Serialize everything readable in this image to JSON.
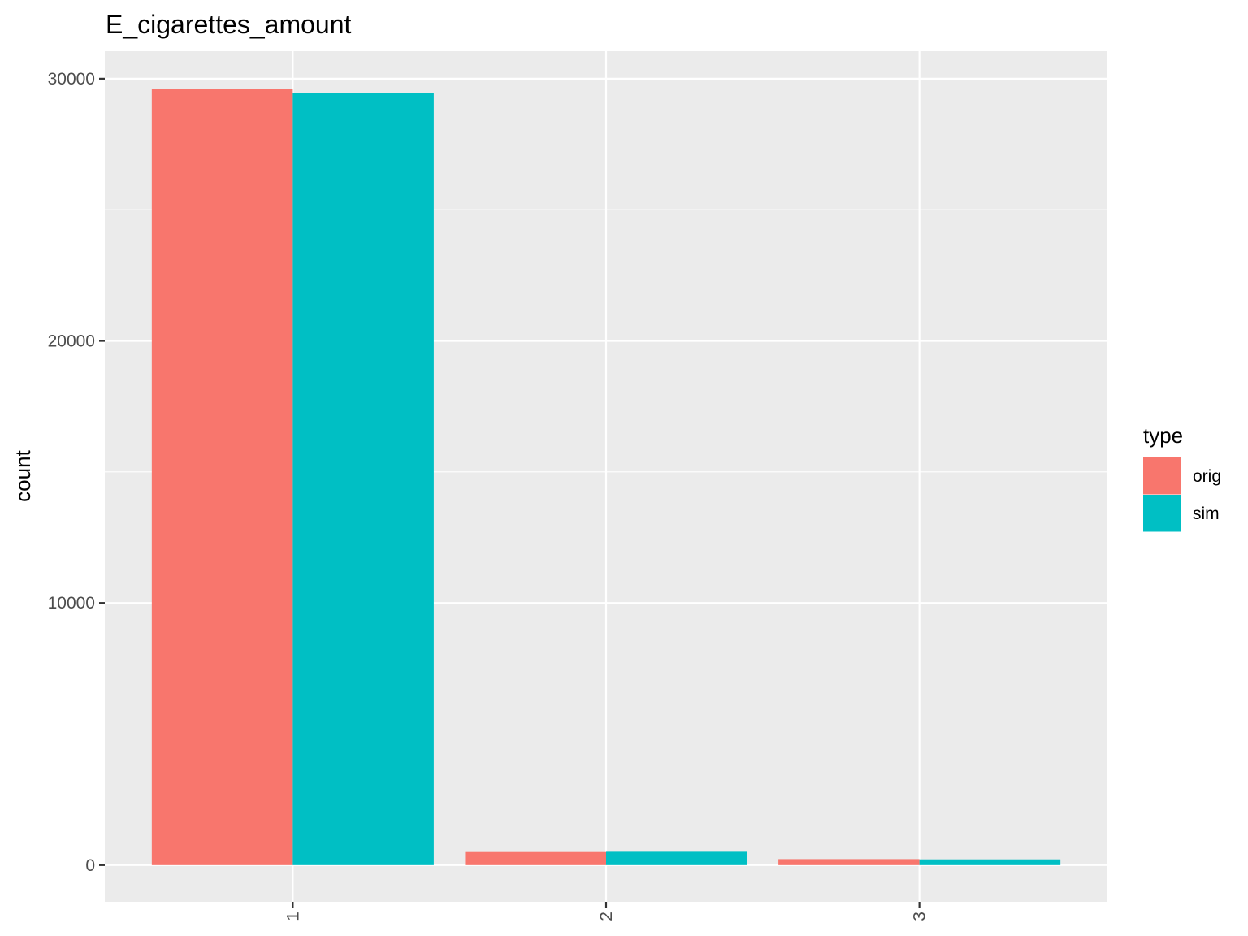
{
  "chart_data": {
    "type": "bar",
    "title": "E_cigarettes_amount",
    "xlabel": "",
    "ylabel": "count",
    "categories": [
      "1",
      "2",
      "3"
    ],
    "series": [
      {
        "name": "orig",
        "color": "#F8766D",
        "values": [
          29600,
          500,
          230
        ]
      },
      {
        "name": "sim",
        "color": "#00BFC4",
        "values": [
          29450,
          510,
          220
        ]
      }
    ],
    "ylim": [
      -1400,
      31050
    ],
    "yticks": [
      0,
      10000,
      20000,
      30000
    ],
    "ytick_labels": [
      "0",
      "10000",
      "20000",
      "30000"
    ],
    "y_minor_ticks": [
      5000,
      15000,
      25000
    ],
    "grid": true,
    "legend": {
      "title": "type",
      "position": "right"
    },
    "panel_color": "#EBEBEB",
    "grid_color": "#FFFFFF"
  }
}
